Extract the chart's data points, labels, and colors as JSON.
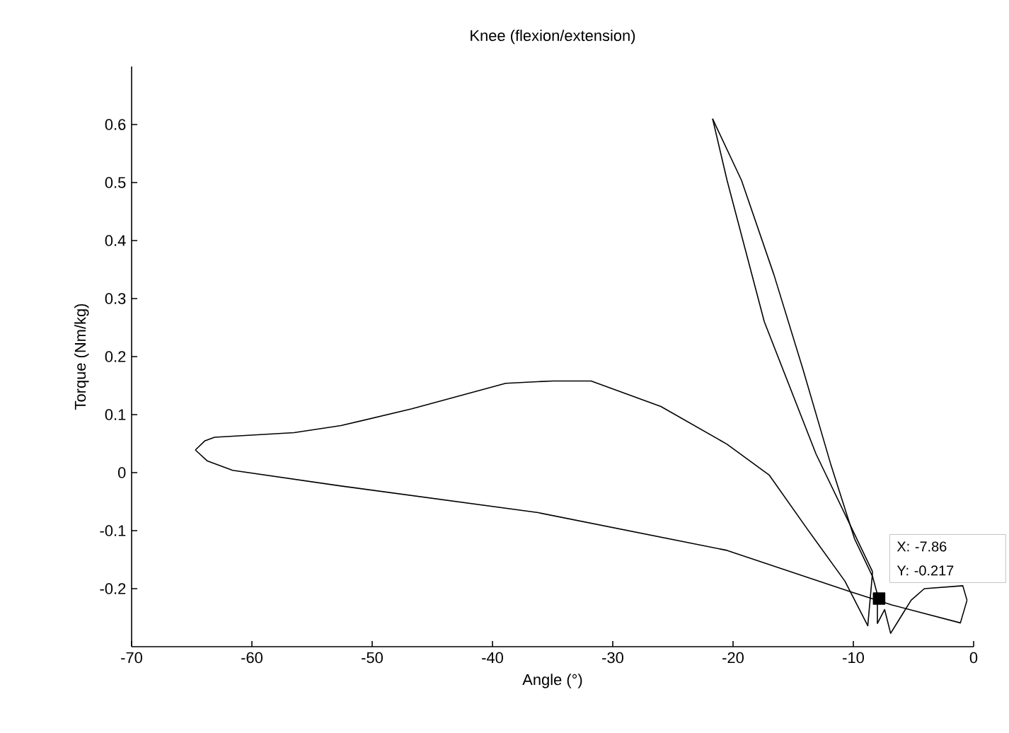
{
  "chart_data": {
    "type": "line",
    "title": "Knee (flexion/extension)",
    "xlabel": "Angle (°)",
    "ylabel": "Torque (Nm/kg)",
    "xlim": [
      -70,
      0
    ],
    "ylim": [
      -0.3,
      0.7
    ],
    "xticks": [
      -70,
      -60,
      -50,
      -40,
      -30,
      -20,
      -10,
      0
    ],
    "yticks": [
      -0.2,
      -0.1,
      0,
      0.1,
      0.2,
      0.3,
      0.4,
      0.5,
      0.6
    ],
    "grid": false,
    "marker": "none",
    "line_style": "solid",
    "series": [
      {
        "type": "scatter",
        "marker": "square",
        "color": "#000000",
        "x": [
          -7.86
        ],
        "values": [
          -0.217
        ]
      },
      {
        "color": "#000000",
        "x": [
          -21.7,
          -19.3,
          -16.6,
          -14.2,
          -11.9,
          -9.9,
          -8.4,
          -8.0,
          -8.0,
          -7.4,
          -6.9,
          -5.2,
          -4.1,
          -0.9,
          -0.55
        ],
        "values": [
          0.61,
          0.504,
          0.341,
          0.179,
          0.016,
          -0.114,
          -0.179,
          -0.21,
          -0.26,
          -0.236,
          -0.277,
          -0.22,
          -0.2,
          -0.195,
          -0.22
        ]
      },
      {
        "color": "#000000",
        "x": [
          -0.55,
          -1.1,
          -6.8,
          -10.3,
          -20.5,
          -36.2,
          -52.6,
          -61.6,
          -63.7,
          -64.7
        ],
        "values": [
          -0.22,
          -0.259,
          -0.228,
          -0.205,
          -0.134,
          -0.069,
          -0.023,
          0.004,
          0.02,
          0.039
        ]
      },
      {
        "color": "#000000",
        "x": [
          -64.7,
          -63.9,
          -63.1,
          -56.5,
          -52.6,
          -46.7,
          -38.9,
          -35.0,
          -31.8,
          -26.0,
          -20.5,
          -17.0,
          -13.8,
          -10.7,
          -8.8,
          -8.4
        ],
        "values": [
          0.039,
          0.055,
          0.061,
          0.069,
          0.081,
          0.11,
          0.154,
          0.158,
          0.158,
          0.114,
          0.049,
          -0.004,
          -0.098,
          -0.187,
          -0.264,
          -0.171
        ]
      },
      {
        "color": "#000000",
        "x": [
          -8.4,
          -9.9,
          -13.1,
          -17.4,
          -20.5,
          -21.7
        ],
        "values": [
          -0.171,
          -0.106,
          0.032,
          0.26,
          0.504,
          0.61
        ]
      }
    ],
    "annotations": [
      "X: -7.86",
      "Y: -0.217"
    ]
  }
}
